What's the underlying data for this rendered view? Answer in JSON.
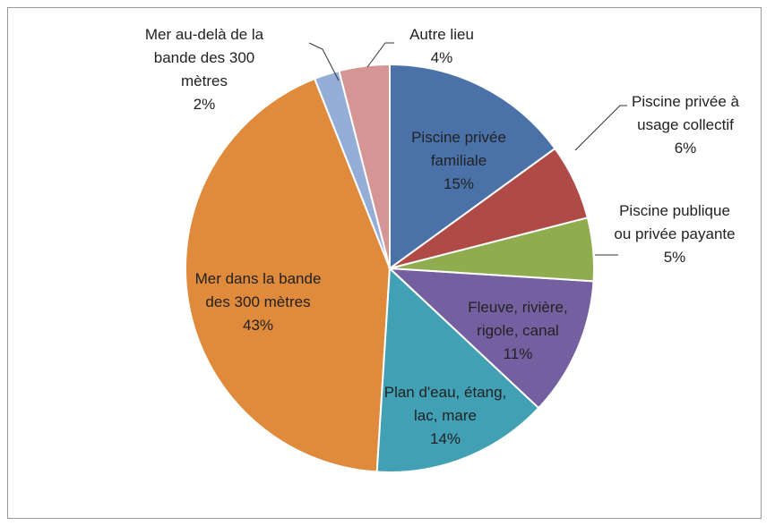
{
  "chart_data": {
    "type": "pie",
    "categories": [
      "Piscine privée familiale",
      "Piscine privée à usage collectif",
      "Piscine publique ou privée payante",
      "Fleuve, rivière, rigole, canal",
      "Plan d'eau, étang, lac, mare",
      "Mer dans la bande des 300 mètres",
      "Mer au-delà de la bande des 300 mètres",
      "Autre lieu"
    ],
    "values": [
      15,
      6,
      5,
      11,
      14,
      43,
      2,
      4
    ],
    "value_labels": [
      "15%",
      "6%",
      "5%",
      "11%",
      "14%",
      "43%",
      "2%",
      "4%"
    ],
    "colors": [
      "#4a72a8",
      "#b04a47",
      "#8fad4f",
      "#7460a0",
      "#41a0b4",
      "#e08a3c",
      "#95aed8",
      "#d49594"
    ]
  }
}
